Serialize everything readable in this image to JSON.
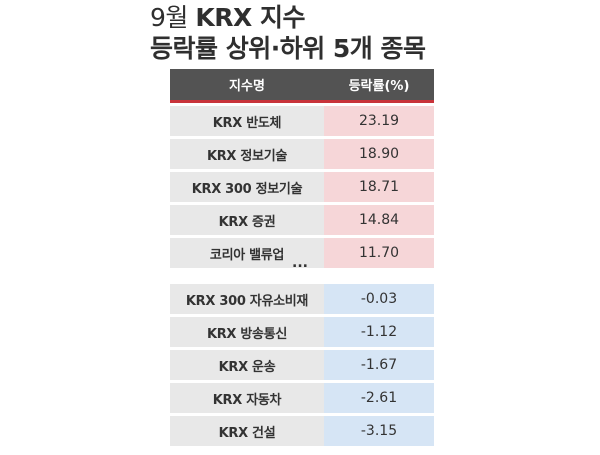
{
  "title": {
    "month": "9월",
    "brand": "KRX 지수",
    "subtitle": "등락률 상위·하위 5개 종목"
  },
  "table": {
    "header": {
      "name": "지수명",
      "value": "등락률(%)"
    },
    "top": [
      {
        "name": "KRX 반도체",
        "value": "23.19"
      },
      {
        "name": "KRX 정보기술",
        "value": "18.90"
      },
      {
        "name": "KRX 300 정보기술",
        "value": "18.71"
      },
      {
        "name": "KRX 증권",
        "value": "14.84"
      },
      {
        "name": "코리아 밸류업",
        "value": "11.70"
      }
    ],
    "ellipsis": "...",
    "bottom": [
      {
        "name": "KRX 300 자유소비재",
        "value": "-0.03"
      },
      {
        "name": "KRX 방송통신",
        "value": "-1.12"
      },
      {
        "name": "KRX 운송",
        "value": "-1.67"
      },
      {
        "name": "KRX 자동차",
        "value": "-2.61"
      },
      {
        "name": "KRX 건설",
        "value": "-3.15"
      }
    ]
  },
  "colors": {
    "header_bg": "#535353",
    "header_rule": "#c8333a",
    "top_value_bg": "#f6d6d8",
    "bottom_value_bg": "#d6e5f5",
    "name_bg": "#e8e8e8"
  }
}
